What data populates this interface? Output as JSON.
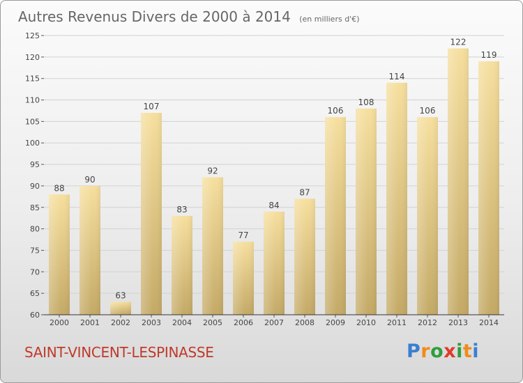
{
  "chart_data": {
    "type": "bar",
    "title": "Autres Revenus Divers de 2000 à 2014",
    "subtitle": "(en milliers d'€)",
    "categories": [
      "2000",
      "2001",
      "2002",
      "2003",
      "2004",
      "2005",
      "2006",
      "2007",
      "2008",
      "2009",
      "2010",
      "2011",
      "2012",
      "2013",
      "2014"
    ],
    "values": [
      88,
      90,
      63,
      107,
      83,
      92,
      77,
      84,
      87,
      106,
      108,
      114,
      106,
      122,
      119
    ],
    "ylim": [
      60,
      125
    ],
    "yticks": [
      60,
      65,
      70,
      75,
      80,
      85,
      90,
      95,
      100,
      105,
      110,
      115,
      120,
      125
    ],
    "grid": true,
    "xlabel": "",
    "ylabel": ""
  },
  "location": "SAINT-VINCENT-LESPINASSE",
  "logo": {
    "text": "Proxiti",
    "letters": [
      "P",
      "r",
      "o",
      "x",
      "i",
      "t",
      "i"
    ],
    "colors": [
      "#3a7fd0",
      "#f08c1a",
      "#2e9e3e",
      "#e03a2a",
      "#2e9e3e",
      "#f08c1a",
      "#3a7fd0"
    ]
  }
}
